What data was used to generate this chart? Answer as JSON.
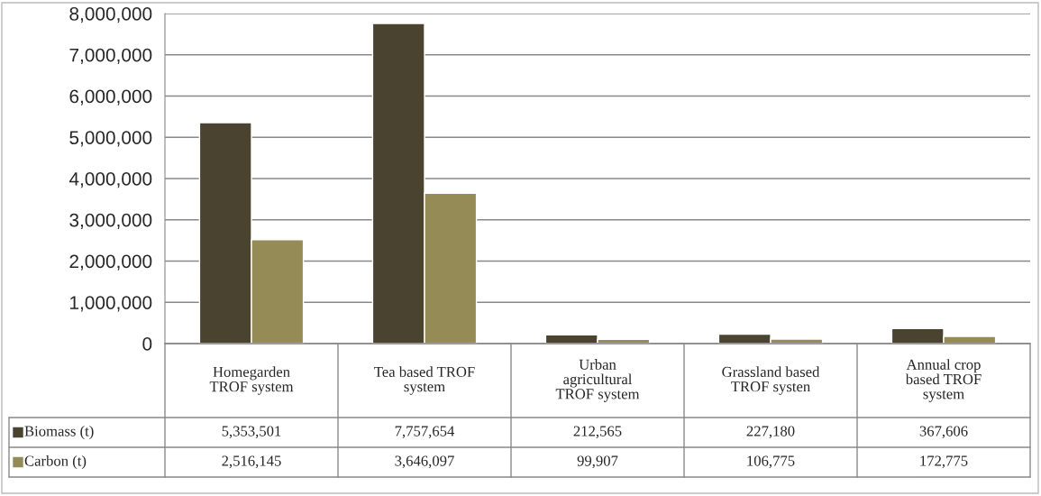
{
  "chart_data": {
    "type": "bar",
    "categories": [
      "Homegarden\nTROF system",
      "Tea based TROF\nsystem",
      "Urban\nagricultural\nTROF system",
      "Grassland based\nTROF systen",
      "Annual crop\nbased TROF\nsystem"
    ],
    "series": [
      {
        "name": "Biomass (t)",
        "color": "#4a4330",
        "values": [
          5353501,
          7757654,
          212565,
          227180,
          367606
        ],
        "value_labels": [
          "5,353,501",
          "7,757,654",
          "212,565",
          "227,180",
          "367,606"
        ]
      },
      {
        "name": "Carbon (t)",
        "color": "#958b56",
        "values": [
          2516145,
          3646097,
          99907,
          106775,
          172775
        ],
        "value_labels": [
          "2,516,145",
          "3,646,097",
          "99,907",
          "106,775",
          "172,775"
        ]
      }
    ],
    "ylim": [
      0,
      8000000
    ],
    "yticks": [
      0,
      {
        "value": 1000000,
        "label": "1,000,000"
      },
      {
        "value": 2000000,
        "label": "2,000,000"
      },
      {
        "value": 3000000,
        "label": "3,000,000"
      },
      {
        "value": 4000000,
        "label": "4,000,000"
      },
      {
        "value": 5000000,
        "label": "5,000,000"
      },
      {
        "value": 6000000,
        "label": "6,000,000"
      },
      {
        "value": 7000000,
        "label": "7,000,000"
      },
      {
        "value": 8000000,
        "label": "8,000,000"
      }
    ],
    "grid": "y",
    "legend": "bottom left"
  }
}
